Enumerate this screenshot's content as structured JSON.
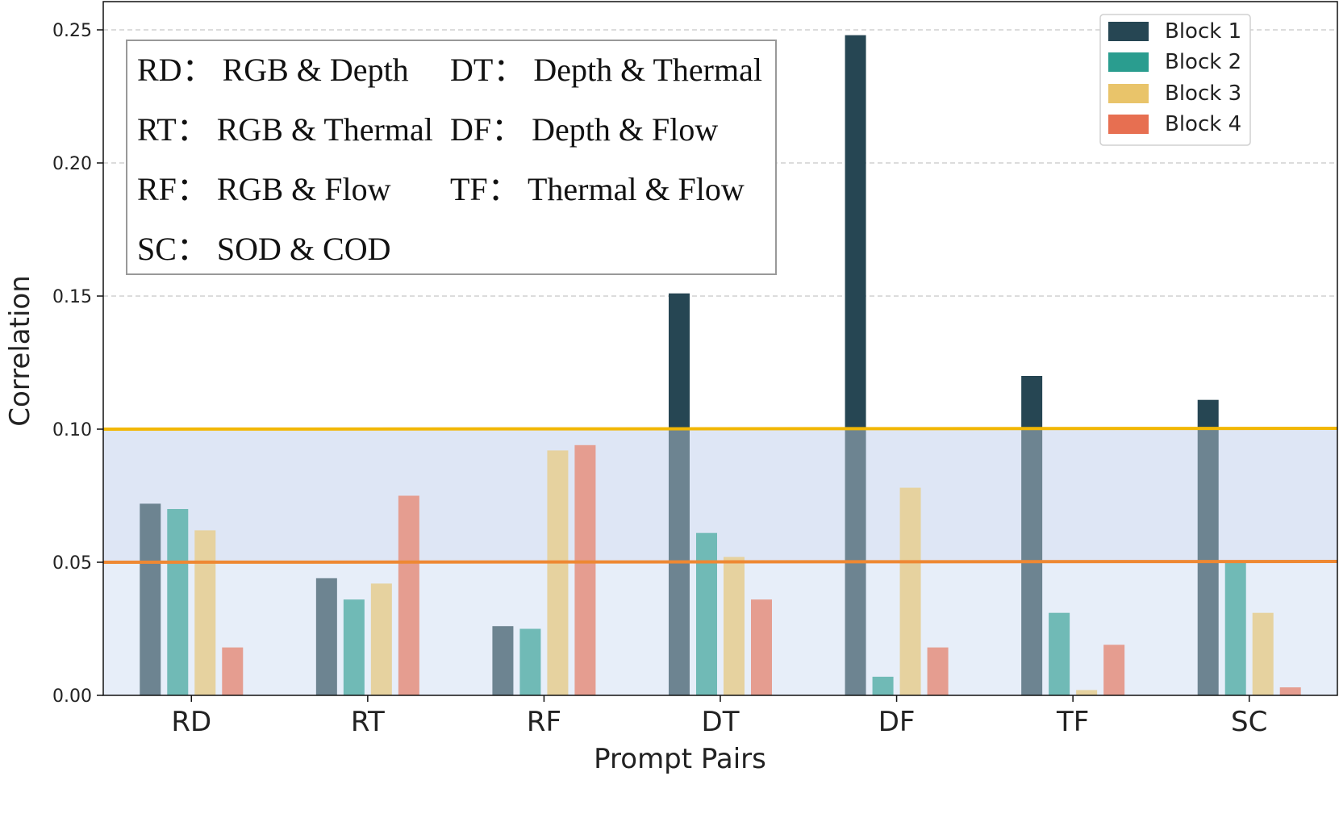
{
  "chart_data": {
    "type": "bar",
    "title": "",
    "xlabel": "Prompt Pairs",
    "ylabel": "Correlation",
    "ylim": [
      0,
      0.26
    ],
    "yticks": [
      "0.00",
      "0.05",
      "0.10",
      "0.15",
      "0.20",
      "0.25"
    ],
    "ytick_values": [
      0,
      0.05,
      0.1,
      0.15,
      0.2,
      0.25
    ],
    "grid": "y-dashed",
    "categories": [
      "RD",
      "RT",
      "RF",
      "DT",
      "DF",
      "TF",
      "SC"
    ],
    "series": [
      {
        "name": "Block 1",
        "color": "#264653",
        "values": [
          0.072,
          0.044,
          0.026,
          0.151,
          0.248,
          0.12,
          0.111
        ]
      },
      {
        "name": "Block 2",
        "color": "#2A9D8F",
        "values": [
          0.07,
          0.036,
          0.025,
          0.061,
          0.007,
          0.031,
          0.05
        ]
      },
      {
        "name": "Block 3",
        "color": "#E9C46A",
        "values": [
          0.062,
          0.042,
          0.092,
          0.052,
          0.078,
          0.002,
          0.031
        ]
      },
      {
        "name": "Block 4",
        "color": "#E76F51",
        "values": [
          0.018,
          0.075,
          0.094,
          0.036,
          0.018,
          0.019,
          0.003
        ]
      }
    ],
    "threshold_lines": [
      {
        "value": 0.1,
        "color": "#F2B705"
      },
      {
        "value": 0.05,
        "color": "#EE8833"
      }
    ],
    "shaded_bands": [
      {
        "from": 0.05,
        "to": 0.1,
        "color": "#DCE4F4"
      },
      {
        "from": 0.0,
        "to": 0.05,
        "color": "#EAF0FA"
      }
    ],
    "legend_position": "top-right",
    "abbreviations": [
      "RD： RGB & Depth",
      "DT： Depth & Thermal",
      "RT： RGB & Thermal",
      "DF： Depth & Flow",
      "RF： RGB & Flow",
      "TF： Thermal & Flow",
      "SC： SOD & COD"
    ]
  }
}
